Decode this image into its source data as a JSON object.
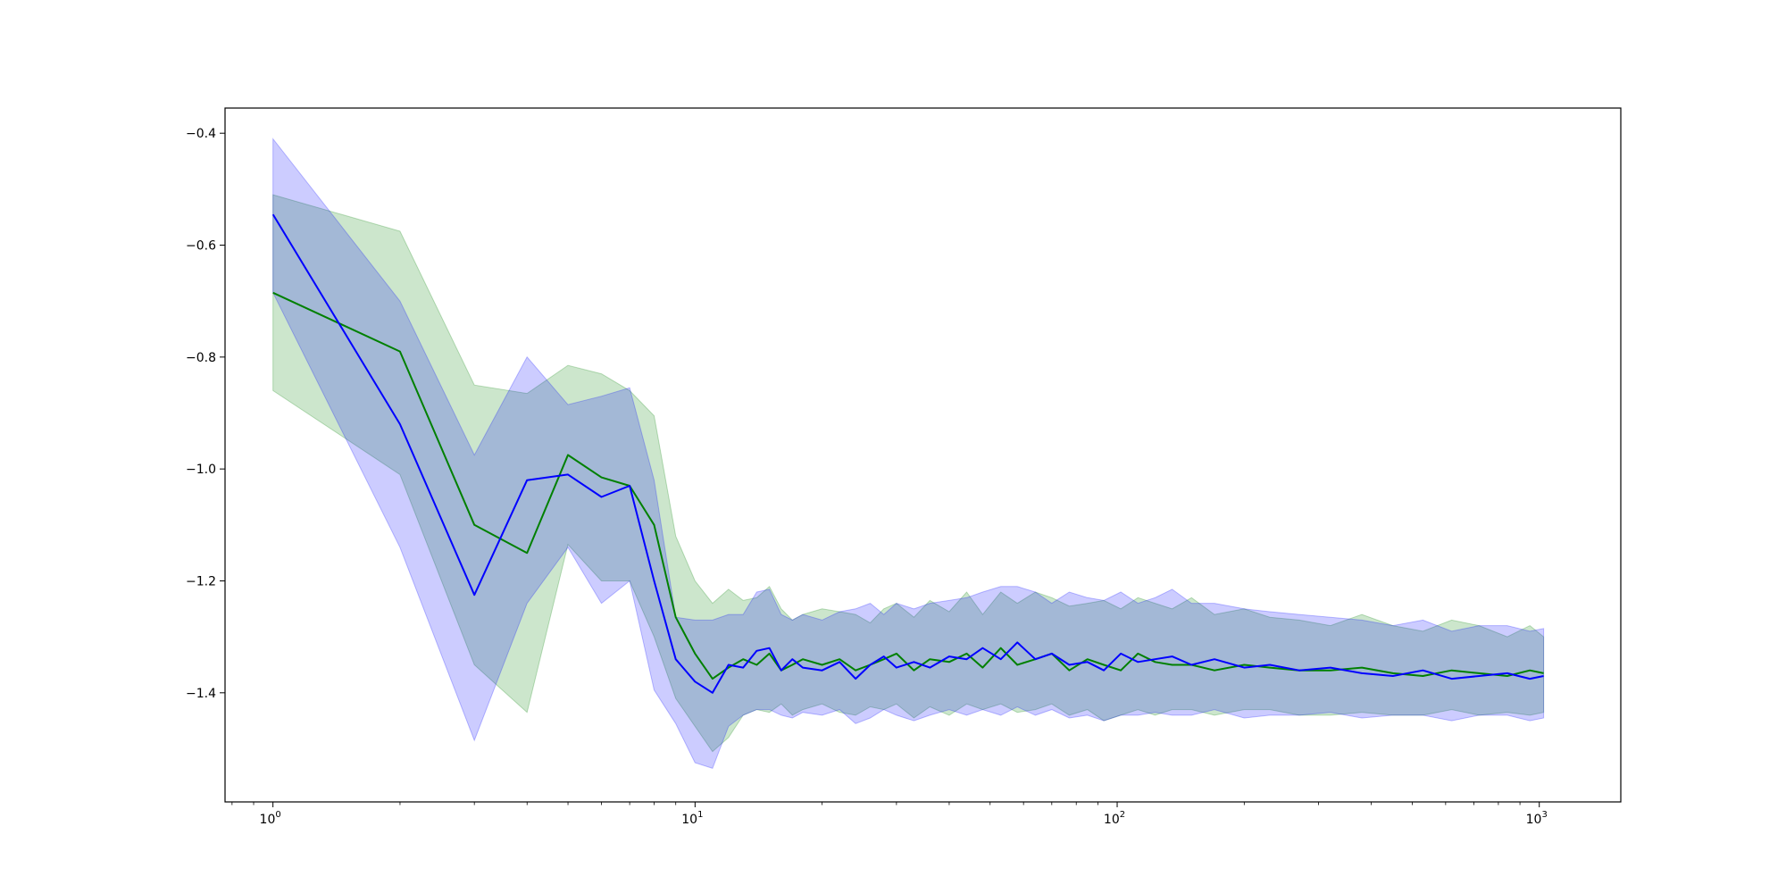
{
  "chart_data": {
    "type": "line",
    "title": "",
    "xlabel": "",
    "ylabel": "",
    "xscale": "log",
    "xlim": [
      0.77,
      1560
    ],
    "ylim": [
      -1.595,
      -0.355
    ],
    "grid": false,
    "legend": "none",
    "y_ticks": [
      {
        "value": -0.4,
        "label": "−0.4"
      },
      {
        "value": -0.6,
        "label": "−0.6"
      },
      {
        "value": -0.8,
        "label": "−0.8"
      },
      {
        "value": -1.0,
        "label": "−1.0"
      },
      {
        "value": -1.2,
        "label": "−1.2"
      },
      {
        "value": -1.4,
        "label": "−1.4"
      }
    ],
    "x_ticks": [
      {
        "value": 1,
        "base": "10",
        "exp": "0"
      },
      {
        "value": 10,
        "base": "10",
        "exp": "1"
      },
      {
        "value": 100,
        "base": "10",
        "exp": "2"
      },
      {
        "value": 1000,
        "base": "10",
        "exp": "3"
      }
    ],
    "series": [
      {
        "color": "#008000",
        "band_color": "#008000",
        "band_opacity": 0.2,
        "x": [
          1,
          2,
          3,
          4,
          5,
          6,
          7,
          8,
          9,
          10,
          11,
          12,
          13,
          14,
          15,
          16,
          17,
          18,
          20,
          22,
          24,
          26,
          28,
          30,
          33,
          36,
          40,
          44,
          48,
          53,
          58,
          64,
          70,
          77,
          85,
          93,
          102,
          112,
          123,
          135,
          150,
          170,
          200,
          230,
          270,
          320,
          380,
          450,
          530,
          620,
          720,
          840,
          950,
          1024
        ],
        "mean": [
          -0.685,
          -0.79,
          -1.1,
          -1.15,
          -0.975,
          -1.015,
          -1.03,
          -1.1,
          -1.265,
          -1.33,
          -1.375,
          -1.355,
          -1.34,
          -1.35,
          -1.33,
          -1.36,
          -1.35,
          -1.34,
          -1.35,
          -1.34,
          -1.36,
          -1.35,
          -1.34,
          -1.33,
          -1.36,
          -1.34,
          -1.345,
          -1.33,
          -1.355,
          -1.32,
          -1.35,
          -1.34,
          -1.33,
          -1.36,
          -1.34,
          -1.35,
          -1.36,
          -1.33,
          -1.345,
          -1.35,
          -1.35,
          -1.36,
          -1.35,
          -1.355,
          -1.36,
          -1.36,
          -1.355,
          -1.365,
          -1.37,
          -1.36,
          -1.365,
          -1.37,
          -1.36,
          -1.365
        ],
        "upper": [
          -0.51,
          -0.575,
          -0.85,
          -0.865,
          -0.815,
          -0.83,
          -0.86,
          -0.905,
          -1.12,
          -1.2,
          -1.24,
          -1.215,
          -1.235,
          -1.23,
          -1.21,
          -1.25,
          -1.27,
          -1.26,
          -1.25,
          -1.255,
          -1.26,
          -1.275,
          -1.25,
          -1.24,
          -1.265,
          -1.235,
          -1.255,
          -1.22,
          -1.26,
          -1.22,
          -1.24,
          -1.22,
          -1.23,
          -1.245,
          -1.24,
          -1.235,
          -1.25,
          -1.23,
          -1.24,
          -1.25,
          -1.23,
          -1.26,
          -1.25,
          -1.265,
          -1.27,
          -1.28,
          -1.26,
          -1.28,
          -1.29,
          -1.27,
          -1.28,
          -1.3,
          -1.28,
          -1.3
        ],
        "lower": [
          -0.86,
          -1.01,
          -1.35,
          -1.435,
          -1.135,
          -1.2,
          -1.2,
          -1.3,
          -1.41,
          -1.46,
          -1.505,
          -1.48,
          -1.44,
          -1.43,
          -1.435,
          -1.42,
          -1.44,
          -1.43,
          -1.42,
          -1.435,
          -1.44,
          -1.425,
          -1.43,
          -1.42,
          -1.445,
          -1.425,
          -1.44,
          -1.42,
          -1.43,
          -1.42,
          -1.435,
          -1.43,
          -1.42,
          -1.44,
          -1.43,
          -1.45,
          -1.44,
          -1.43,
          -1.44,
          -1.43,
          -1.43,
          -1.44,
          -1.43,
          -1.43,
          -1.44,
          -1.44,
          -1.435,
          -1.44,
          -1.44,
          -1.43,
          -1.44,
          -1.435,
          -1.44,
          -1.435
        ]
      },
      {
        "color": "#0000ff",
        "band_color": "#0000ff",
        "band_opacity": 0.2,
        "x": [
          1,
          2,
          3,
          4,
          5,
          6,
          7,
          8,
          9,
          10,
          11,
          12,
          13,
          14,
          15,
          16,
          17,
          18,
          20,
          22,
          24,
          26,
          28,
          30,
          33,
          36,
          40,
          44,
          48,
          53,
          58,
          64,
          70,
          77,
          85,
          93,
          102,
          112,
          123,
          135,
          150,
          170,
          200,
          230,
          270,
          320,
          380,
          450,
          530,
          620,
          720,
          840,
          950,
          1024
        ],
        "mean": [
          -0.545,
          -0.92,
          -1.225,
          -1.02,
          -1.01,
          -1.05,
          -1.03,
          -1.2,
          -1.34,
          -1.38,
          -1.4,
          -1.35,
          -1.355,
          -1.325,
          -1.32,
          -1.36,
          -1.34,
          -1.355,
          -1.36,
          -1.345,
          -1.375,
          -1.35,
          -1.335,
          -1.355,
          -1.345,
          -1.355,
          -1.335,
          -1.34,
          -1.32,
          -1.34,
          -1.31,
          -1.34,
          -1.33,
          -1.35,
          -1.345,
          -1.36,
          -1.33,
          -1.345,
          -1.34,
          -1.335,
          -1.35,
          -1.34,
          -1.355,
          -1.35,
          -1.36,
          -1.355,
          -1.365,
          -1.37,
          -1.36,
          -1.375,
          -1.37,
          -1.365,
          -1.375,
          -1.37
        ],
        "upper": [
          -0.41,
          -0.7,
          -0.975,
          -0.8,
          -0.885,
          -0.87,
          -0.855,
          -1.02,
          -1.265,
          -1.27,
          -1.27,
          -1.26,
          -1.26,
          -1.22,
          -1.215,
          -1.26,
          -1.27,
          -1.26,
          -1.27,
          -1.255,
          -1.25,
          -1.24,
          -1.26,
          -1.24,
          -1.25,
          -1.24,
          -1.235,
          -1.23,
          -1.22,
          -1.21,
          -1.21,
          -1.22,
          -1.24,
          -1.22,
          -1.23,
          -1.235,
          -1.22,
          -1.24,
          -1.23,
          -1.215,
          -1.24,
          -1.24,
          -1.25,
          -1.255,
          -1.26,
          -1.265,
          -1.27,
          -1.28,
          -1.27,
          -1.29,
          -1.28,
          -1.28,
          -1.29,
          -1.285
        ],
        "lower": [
          -0.685,
          -1.14,
          -1.485,
          -1.24,
          -1.14,
          -1.24,
          -1.2,
          -1.395,
          -1.455,
          -1.525,
          -1.535,
          -1.46,
          -1.44,
          -1.43,
          -1.43,
          -1.44,
          -1.445,
          -1.435,
          -1.44,
          -1.43,
          -1.455,
          -1.445,
          -1.43,
          -1.44,
          -1.45,
          -1.44,
          -1.43,
          -1.44,
          -1.43,
          -1.44,
          -1.425,
          -1.44,
          -1.43,
          -1.445,
          -1.44,
          -1.45,
          -1.44,
          -1.44,
          -1.435,
          -1.44,
          -1.44,
          -1.43,
          -1.445,
          -1.44,
          -1.44,
          -1.435,
          -1.445,
          -1.44,
          -1.44,
          -1.45,
          -1.44,
          -1.44,
          -1.45,
          -1.445
        ]
      }
    ]
  }
}
